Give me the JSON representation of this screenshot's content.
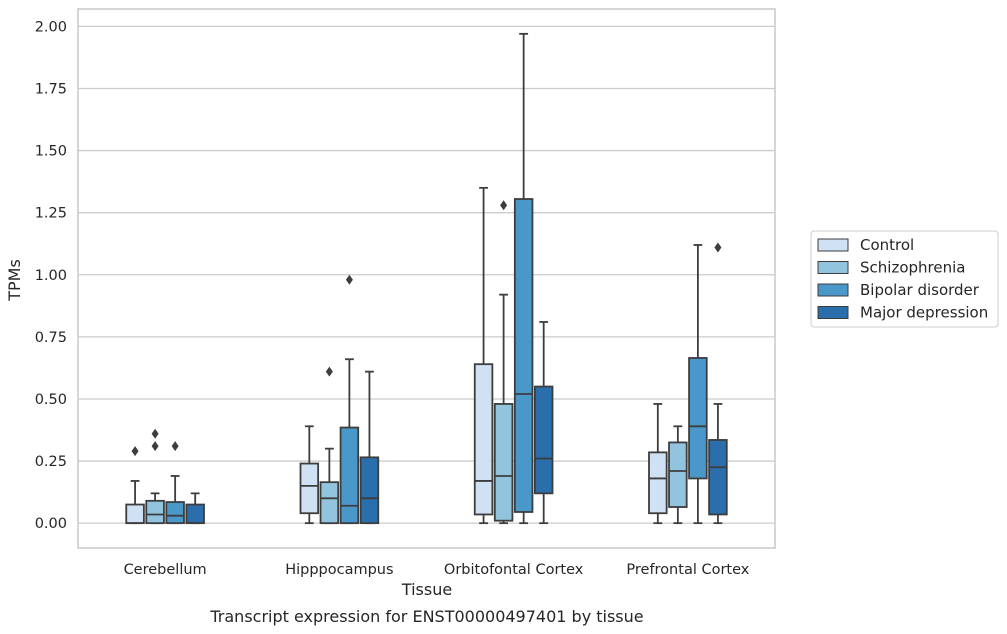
{
  "chart_data": {
    "type": "box",
    "xlabel": "Tissue",
    "ylabel": "TPMs",
    "caption": "Transcript expression for ENST00000497401 by tissue",
    "ylim": [
      -0.1,
      2.07
    ],
    "yticks": [
      "0.00",
      "0.25",
      "0.50",
      "0.75",
      "1.00",
      "1.25",
      "1.50",
      "1.75",
      "2.00"
    ],
    "ytick_values": [
      0,
      0.25,
      0.5,
      0.75,
      1.0,
      1.25,
      1.5,
      1.75,
      2.0
    ],
    "grid": "horizontal",
    "legend_position": "right",
    "categories": [
      "Cerebellum",
      "Hipppocampus",
      "Orbitofontal Cortex",
      "Prefrontal Cortex"
    ],
    "series": [
      {
        "name": "Control",
        "color": "#cfe1f2",
        "boxes": [
          {
            "whisker_low": 0.0,
            "q1": 0.0,
            "median": 0.0,
            "q3": 0.075,
            "whisker_high": 0.17,
            "outliers": [
              0.29
            ]
          },
          {
            "whisker_low": 0.0,
            "q1": 0.04,
            "median": 0.15,
            "q3": 0.24,
            "whisker_high": 0.39,
            "outliers": []
          },
          {
            "whisker_low": 0.0,
            "q1": 0.035,
            "median": 0.17,
            "q3": 0.64,
            "whisker_high": 1.35,
            "outliers": []
          },
          {
            "whisker_low": 0.0,
            "q1": 0.04,
            "median": 0.18,
            "q3": 0.285,
            "whisker_high": 0.48,
            "outliers": []
          }
        ]
      },
      {
        "name": "Schizophrenia",
        "color": "#93c4de",
        "boxes": [
          {
            "whisker_low": 0.0,
            "q1": 0.0,
            "median": 0.035,
            "q3": 0.09,
            "whisker_high": 0.12,
            "outliers": [
              0.31,
              0.36
            ]
          },
          {
            "whisker_low": 0.0,
            "q1": 0.0,
            "median": 0.1,
            "q3": 0.165,
            "whisker_high": 0.3,
            "outliers": [
              0.61
            ]
          },
          {
            "whisker_low": 0.0,
            "q1": 0.01,
            "median": 0.19,
            "q3": 0.48,
            "whisker_high": 0.92,
            "outliers": [
              1.28
            ]
          },
          {
            "whisker_low": 0.0,
            "q1": 0.065,
            "median": 0.21,
            "q3": 0.325,
            "whisker_high": 0.39,
            "outliers": []
          }
        ]
      },
      {
        "name": "Bipolar disorder",
        "color": "#4a98c9",
        "boxes": [
          {
            "whisker_low": 0.0,
            "q1": 0.0,
            "median": 0.03,
            "q3": 0.085,
            "whisker_high": 0.19,
            "outliers": [
              0.31
            ]
          },
          {
            "whisker_low": 0.0,
            "q1": 0.0,
            "median": 0.07,
            "q3": 0.385,
            "whisker_high": 0.66,
            "outliers": [
              0.98
            ]
          },
          {
            "whisker_low": 0.0,
            "q1": 0.045,
            "median": 0.52,
            "q3": 1.305,
            "whisker_high": 1.97,
            "outliers": []
          },
          {
            "whisker_low": 0.0,
            "q1": 0.18,
            "median": 0.39,
            "q3": 0.665,
            "whisker_high": 1.12,
            "outliers": []
          }
        ]
      },
      {
        "name": "Major depression",
        "color": "#2b6eac",
        "boxes": [
          {
            "whisker_low": 0.0,
            "q1": 0.0,
            "median": 0.0,
            "q3": 0.075,
            "whisker_high": 0.12,
            "outliers": []
          },
          {
            "whisker_low": 0.0,
            "q1": 0.0,
            "median": 0.1,
            "q3": 0.265,
            "whisker_high": 0.61,
            "outliers": []
          },
          {
            "whisker_low": 0.0,
            "q1": 0.12,
            "median": 0.26,
            "q3": 0.55,
            "whisker_high": 0.81,
            "outliers": []
          },
          {
            "whisker_low": 0.0,
            "q1": 0.035,
            "median": 0.225,
            "q3": 0.335,
            "whisker_high": 0.48,
            "outliers": [
              1.11
            ]
          }
        ]
      }
    ]
  }
}
